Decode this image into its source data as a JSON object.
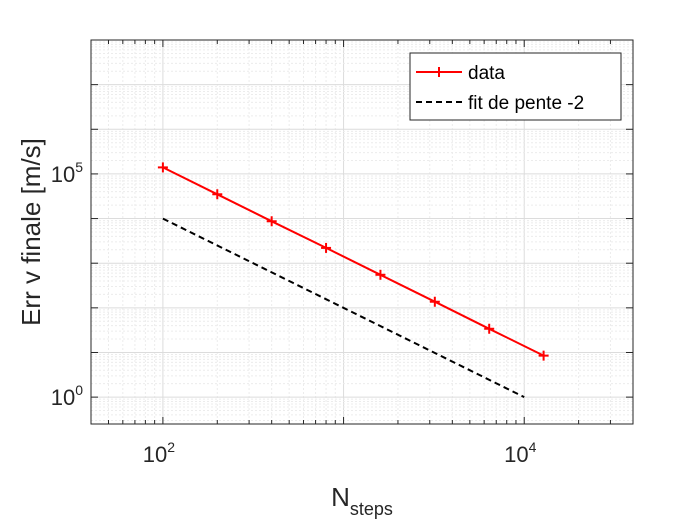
{
  "chart_data": {
    "type": "line",
    "xscale": "log",
    "yscale": "log",
    "xlim": [
      40,
      40000
    ],
    "ylim": [
      0.25,
      100000000
    ],
    "grid": true,
    "legend_position": "top-right",
    "xlabel": "N",
    "xlabel_sub": "steps",
    "ylabel": "Err v finale [m/s]",
    "xticks": [
      {
        "value": 100,
        "base": "10",
        "exp": "2"
      },
      {
        "value": 10000,
        "base": "10",
        "exp": "4"
      }
    ],
    "yticks": [
      {
        "value": 1,
        "base": "10",
        "exp": "0"
      },
      {
        "value": 100000,
        "base": "10",
        "exp": "5"
      }
    ],
    "series": [
      {
        "name": "data",
        "color": "#ff0000",
        "style": "solid",
        "marker": "plus",
        "x": [
          100,
          200,
          400,
          800,
          1600,
          3200,
          6400,
          12800
        ],
        "y": [
          140000,
          35000,
          8700,
          2200,
          550,
          137,
          34,
          8.5
        ]
      },
      {
        "name": "fit de pente -2",
        "color": "#000000",
        "style": "dashed",
        "marker": "none",
        "x": [
          100,
          10000
        ],
        "y": [
          10000,
          1
        ]
      }
    ]
  }
}
